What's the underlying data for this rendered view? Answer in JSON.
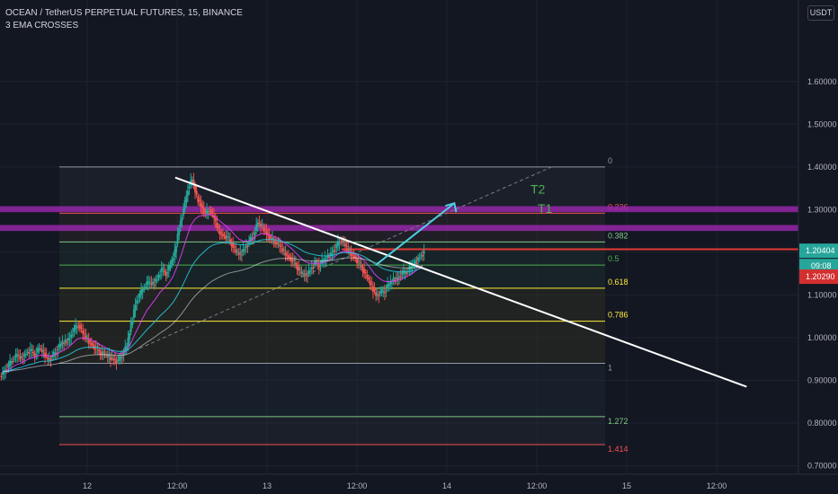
{
  "legend": {
    "symbol": "OCEAN / TetherUS PERPETUAL FUTURES, 15, BINANCE",
    "indicator": "3 EMA CROSSES"
  },
  "currency": "USDT",
  "colors": {
    "background": "#131722",
    "up": "#26a69a",
    "down": "#ef5350",
    "trendline": "#ffffff",
    "projection": "#4dd0e1",
    "zone": "#9c27b0",
    "resistance": "#e53935"
  },
  "chart_data": {
    "type": "candlestick",
    "ylim": [
      0.68,
      1.77
    ],
    "y_ticks": [
      "1.60000",
      "1.50000",
      "1.40000",
      "1.30000",
      "1.20000",
      "1.10000",
      "1.00000",
      "0.90000",
      "0.80000",
      "0.70000"
    ],
    "x_ticks": [
      "12",
      "12:00",
      "13",
      "12:00",
      "14",
      "12:00",
      "15",
      "12:00"
    ],
    "price_labels": {
      "last": "1.20404",
      "countdown": "09:08",
      "ema": "1.20290"
    },
    "fibonacci": {
      "high": 1.4,
      "low": 0.94,
      "levels": [
        {
          "label": "0",
          "color": "#9598a1"
        },
        {
          "label": "0.236",
          "color": "#ef5350"
        },
        {
          "label": "0.382",
          "color": "#81c784"
        },
        {
          "label": "0.5",
          "color": "#4caf50"
        },
        {
          "label": "0.618",
          "color": "#ffeb3b"
        },
        {
          "label": "0.786",
          "color": "#ffeb3b"
        },
        {
          "label": "1",
          "color": "#9598a1"
        },
        {
          "label": "1.272",
          "color": "#81c784"
        },
        {
          "label": "1.414",
          "color": "#ef5350"
        }
      ]
    },
    "zones": [
      {
        "label": "T2",
        "low": 1.294,
        "high": 1.308
      },
      {
        "label": "T1",
        "low": 1.25,
        "high": 1.264
      }
    ],
    "resistance": 1.207,
    "candles_close": [
      0.92,
      0.935,
      0.95,
      0.96,
      0.95,
      0.965,
      0.97,
      0.96,
      0.975,
      0.965,
      0.95,
      0.955,
      0.97,
      0.985,
      0.99,
      1.0,
      1.02,
      1.03,
      1.01,
      0.995,
      0.985,
      0.975,
      0.965,
      0.96,
      0.955,
      0.95,
      0.945,
      0.96,
      0.98,
      1.03,
      1.08,
      1.1,
      1.12,
      1.13,
      1.125,
      1.14,
      1.16,
      1.15,
      1.17,
      1.2,
      1.26,
      1.3,
      1.35,
      1.37,
      1.33,
      1.31,
      1.29,
      1.3,
      1.28,
      1.25,
      1.24,
      1.235,
      1.22,
      1.2,
      1.195,
      1.21,
      1.225,
      1.24,
      1.27,
      1.26,
      1.245,
      1.23,
      1.225,
      1.215,
      1.2,
      1.19,
      1.18,
      1.165,
      1.15,
      1.145,
      1.16,
      1.175,
      1.17,
      1.18,
      1.19,
      1.2,
      1.215,
      1.23,
      1.215,
      1.2,
      1.19,
      1.175,
      1.16,
      1.14,
      1.12,
      1.1,
      1.105,
      1.11,
      1.125,
      1.135,
      1.14,
      1.15,
      1.155,
      1.165,
      1.175,
      1.19,
      1.2
    ],
    "annotations": {
      "trendline": [
        [
          "11:45 Nov 12",
          1.375
        ],
        [
          "16:00 Nov 15",
          0.885
        ]
      ],
      "projection": [
        [
          "14:30 Nov 13",
          1.17
        ],
        [
          "01:00 Nov 14",
          1.315
        ]
      ],
      "dashed_line": [
        [
          "07:00 Nov 12",
          0.975
        ],
        [
          "14:00 Nov 14",
          1.4
        ]
      ]
    }
  }
}
